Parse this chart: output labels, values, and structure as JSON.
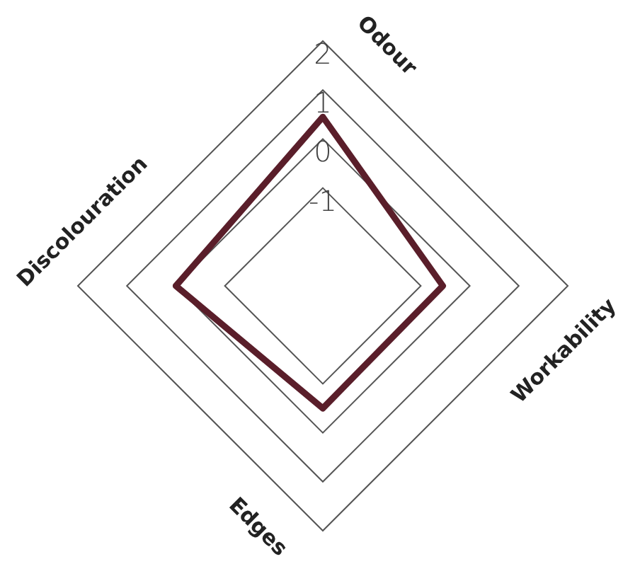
{
  "chart_data": {
    "type": "radar",
    "categories": [
      "Odour",
      "Workability",
      "Edges",
      "Discolouration"
    ],
    "series": [
      {
        "color": "#5a1e2a",
        "values": [
          0.45,
          -0.55,
          -0.5,
          0.0
        ]
      }
    ],
    "ylim": [
      -3,
      2
    ],
    "yticks": [
      -1,
      0,
      1,
      2
    ],
    "grid": true
  }
}
